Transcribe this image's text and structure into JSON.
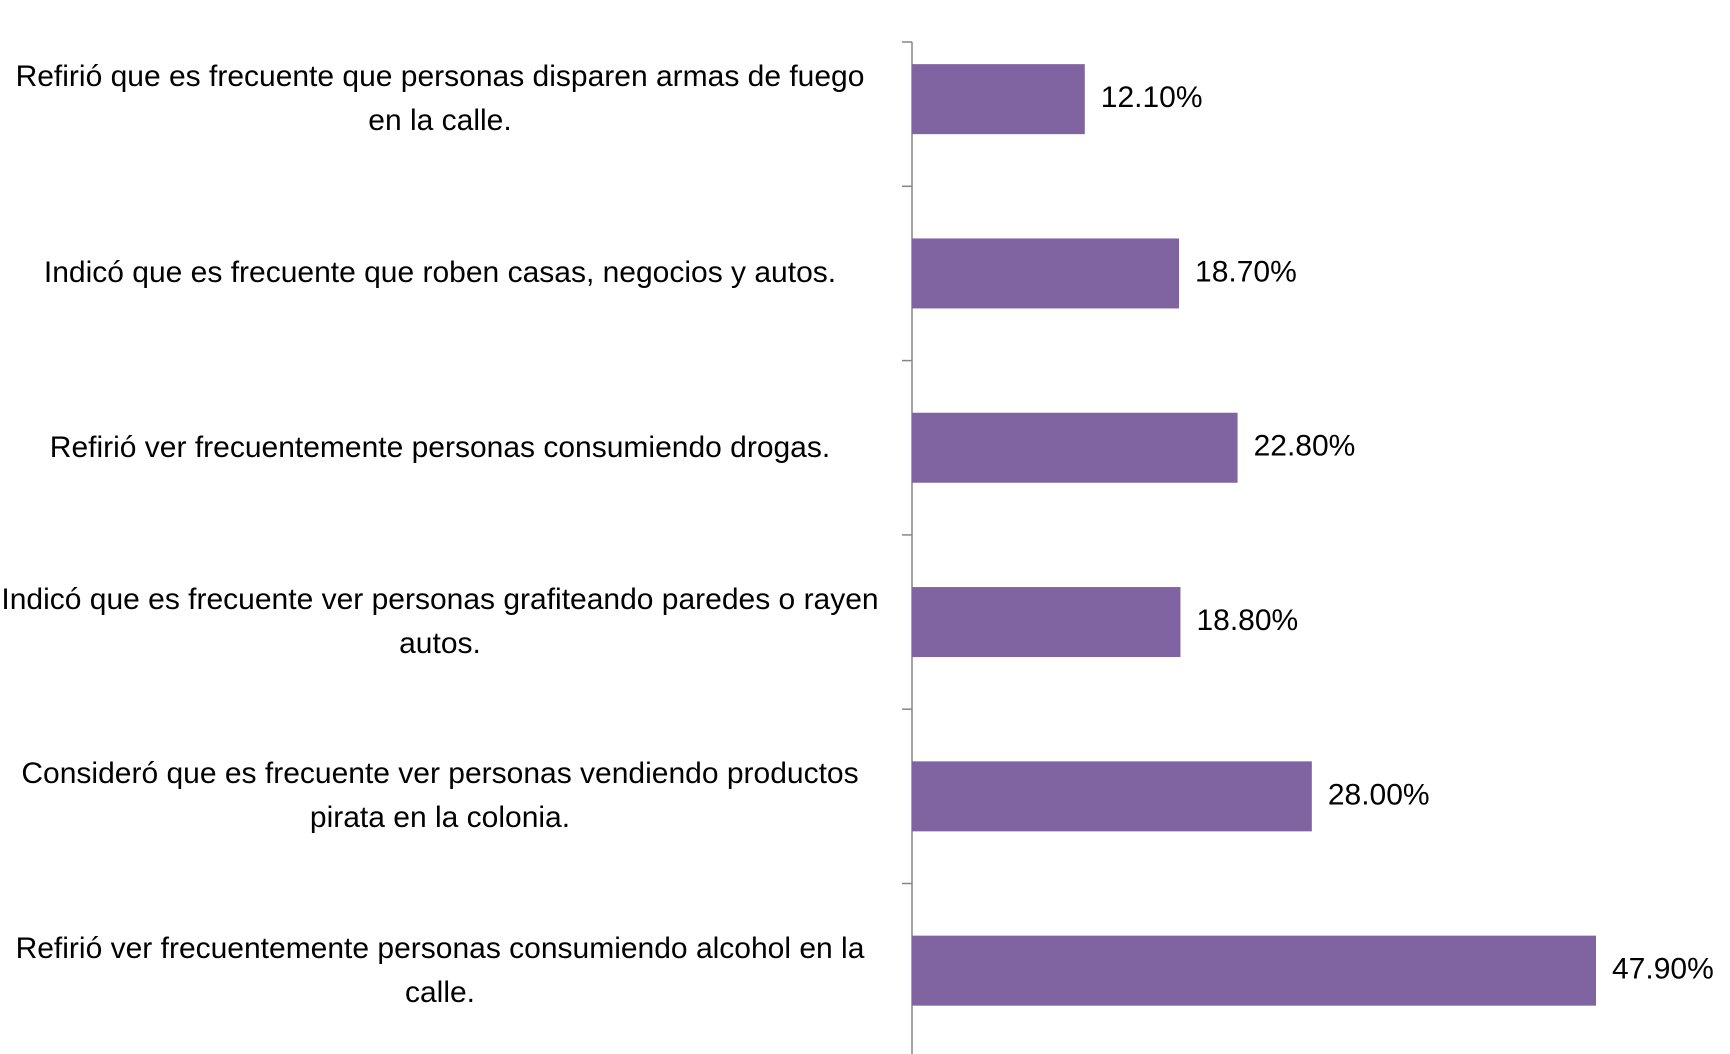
{
  "chart_data": {
    "type": "bar",
    "orientation": "horizontal",
    "categories": [
      "Refirió que es frecuente que personas disparen armas de fuego en la calle.",
      "Indicó que es frecuente que roben casas, negocios y autos.",
      "Refirió ver frecuentemente personas consumiendo drogas.",
      "Indicó que es frecuente ver personas grafiteando paredes o rayen autos.",
      "Consideró que es frecuente ver personas vendiendo productos pirata en la colonia.",
      "Refirió ver frecuentemente personas consumiendo alcohol en la calle."
    ],
    "values": [
      12.1,
      18.7,
      22.8,
      18.8,
      28.0,
      47.9
    ],
    "value_labels": [
      "12.10%",
      "18.70%",
      "22.80%",
      "18.80%",
      "28.00%",
      "47.90%"
    ],
    "color": "#8064a2"
  }
}
